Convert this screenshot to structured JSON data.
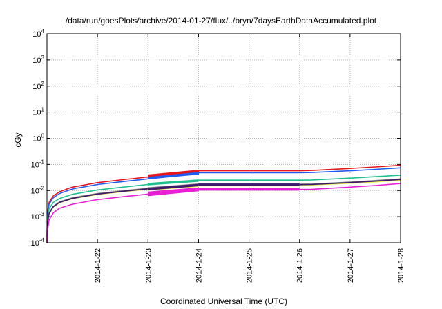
{
  "chart_data": {
    "type": "line",
    "title": "/data/run/goesPlots/archive/2014-01-27/flux/../bryn/7daysEarthDataAccumulated.plot",
    "xlabel": "Coordinated Universal Time (UTC)",
    "ylabel": "cGy",
    "yscale": "log",
    "ylim": [
      0.0001,
      10000
    ],
    "xlim": [
      "2014-01-21",
      "2014-01-28"
    ],
    "grid": true,
    "x_ticks": [
      "2014-1-22",
      "2014-1-23",
      "2014-1-24",
      "2014-1-25",
      "2014-1-26",
      "2014-1-27",
      "2014-1-28"
    ],
    "y_ticks": [
      {
        "value": 0.0001,
        "base": "10",
        "exp": "-4"
      },
      {
        "value": 0.001,
        "base": "10",
        "exp": "-3"
      },
      {
        "value": 0.01,
        "base": "10",
        "exp": "-2"
      },
      {
        "value": 0.1,
        "base": "10",
        "exp": "-1"
      },
      {
        "value": 1,
        "base": "10",
        "exp": "0"
      },
      {
        "value": 10,
        "base": "10",
        "exp": "1"
      },
      {
        "value": 100,
        "base": "10",
        "exp": "2"
      },
      {
        "value": 1000,
        "base": "10",
        "exp": "3"
      },
      {
        "value": 10000,
        "base": "10",
        "exp": "4"
      }
    ],
    "series": [
      {
        "color": "#e8161b",
        "points": [
          [
            "2014-01-21T00:00",
            0.0002
          ],
          [
            "2014-01-21T00:15",
            0.0015
          ],
          [
            "2014-01-21T01:00",
            0.0035
          ],
          [
            "2014-01-21T03:00",
            0.0062
          ],
          [
            "2014-01-21T06:00",
            0.009
          ],
          [
            "2014-01-21T12:00",
            0.0135
          ],
          [
            "2014-01-22T00:00",
            0.02
          ],
          [
            "2014-01-22T12:00",
            0.026
          ],
          [
            "2014-01-23T00:00",
            0.033
          ],
          [
            "2014-01-23T12:00",
            0.041
          ],
          [
            "2014-01-24T00:00",
            0.05
          ],
          [
            "2014-01-24T00:01",
            0.057
          ],
          [
            "2014-01-26T00:00",
            0.057
          ],
          [
            "2014-01-26T06:00",
            0.059
          ],
          [
            "2014-01-27T00:00",
            0.07
          ],
          [
            "2014-01-27T12:00",
            0.08
          ],
          [
            "2014-01-28T00:00",
            0.093
          ]
        ]
      },
      {
        "color": "#1f5cf0",
        "points": [
          [
            "2014-01-21T00:00",
            0.00016
          ],
          [
            "2014-01-21T00:15",
            0.0012
          ],
          [
            "2014-01-21T01:00",
            0.003
          ],
          [
            "2014-01-21T03:00",
            0.0053
          ],
          [
            "2014-01-21T06:00",
            0.0077
          ],
          [
            "2014-01-21T12:00",
            0.0115
          ],
          [
            "2014-01-22T00:00",
            0.017
          ],
          [
            "2014-01-22T12:00",
            0.022
          ],
          [
            "2014-01-23T00:00",
            0.028
          ],
          [
            "2014-01-23T12:00",
            0.035
          ],
          [
            "2014-01-24T00:00",
            0.043
          ],
          [
            "2014-01-24T00:01",
            0.048
          ],
          [
            "2014-01-26T00:00",
            0.048
          ],
          [
            "2014-01-26T06:00",
            0.049
          ],
          [
            "2014-01-27T00:00",
            0.057
          ],
          [
            "2014-01-27T12:00",
            0.065
          ],
          [
            "2014-01-28T00:00",
            0.074
          ]
        ]
      },
      {
        "color": "#1ec08f",
        "points": [
          [
            "2014-01-21T00:00",
            0.00012
          ],
          [
            "2014-01-21T00:15",
            0.0008
          ],
          [
            "2014-01-21T01:00",
            0.002
          ],
          [
            "2014-01-21T03:00",
            0.0035
          ],
          [
            "2014-01-21T06:00",
            0.005
          ],
          [
            "2014-01-21T12:00",
            0.0072
          ],
          [
            "2014-01-22T00:00",
            0.0105
          ],
          [
            "2014-01-22T12:00",
            0.0135
          ],
          [
            "2014-01-23T00:00",
            0.017
          ],
          [
            "2014-01-23T12:00",
            0.0205
          ],
          [
            "2014-01-24T00:00",
            0.0235
          ],
          [
            "2014-01-24T00:01",
            0.025
          ],
          [
            "2014-01-26T00:00",
            0.025
          ],
          [
            "2014-01-26T06:00",
            0.0255
          ],
          [
            "2014-01-27T00:00",
            0.03
          ],
          [
            "2014-01-27T12:00",
            0.034
          ],
          [
            "2014-01-28T00:00",
            0.039
          ]
        ]
      },
      {
        "color": "#7f7f7f",
        "points": [
          [
            "2014-01-21T00:00",
            0.0001
          ],
          [
            "2014-01-21T00:15",
            0.0006
          ],
          [
            "2014-01-21T01:00",
            0.0014
          ],
          [
            "2014-01-21T03:00",
            0.0025
          ],
          [
            "2014-01-21T06:00",
            0.0037
          ],
          [
            "2014-01-21T12:00",
            0.0053
          ],
          [
            "2014-01-22T00:00",
            0.0077
          ],
          [
            "2014-01-22T12:00",
            0.0098
          ],
          [
            "2014-01-23T00:00",
            0.0122
          ],
          [
            "2014-01-23T12:00",
            0.0145
          ],
          [
            "2014-01-24T00:00",
            0.0165
          ],
          [
            "2014-01-24T00:01",
            0.0175
          ],
          [
            "2014-01-26T00:00",
            0.0175
          ],
          [
            "2014-01-26T06:00",
            0.0178
          ],
          [
            "2014-01-27T00:00",
            0.021
          ],
          [
            "2014-01-27T12:00",
            0.024
          ],
          [
            "2014-01-28T00:00",
            0.028
          ]
        ]
      },
      {
        "color": "#f2ef3a",
        "points": [
          [
            "2014-01-21T00:00",
            0.0001
          ],
          [
            "2014-01-21T00:15",
            0.00055
          ],
          [
            "2014-01-21T01:00",
            0.0013
          ],
          [
            "2014-01-21T03:00",
            0.0023
          ],
          [
            "2014-01-21T06:00",
            0.0034
          ],
          [
            "2014-01-21T12:00",
            0.0049
          ],
          [
            "2014-01-22T00:00",
            0.0071
          ],
          [
            "2014-01-22T12:00",
            0.009
          ],
          [
            "2014-01-23T00:00",
            0.0112
          ],
          [
            "2014-01-23T12:00",
            0.0133
          ],
          [
            "2014-01-24T00:00",
            0.0152
          ],
          [
            "2014-01-24T00:01",
            0.016
          ],
          [
            "2014-01-26T00:00",
            0.016
          ],
          [
            "2014-01-26T06:00",
            0.0163
          ],
          [
            "2014-01-27T00:00",
            0.019
          ],
          [
            "2014-01-27T12:00",
            0.0215
          ],
          [
            "2014-01-28T00:00",
            0.025
          ]
        ]
      },
      {
        "color": "#3d1a70",
        "points": [
          [
            "2014-01-21T00:00",
            0.0001
          ],
          [
            "2014-01-21T00:15",
            0.00055
          ],
          [
            "2014-01-21T01:00",
            0.0013
          ],
          [
            "2014-01-21T03:00",
            0.0024
          ],
          [
            "2014-01-21T06:00",
            0.0035
          ],
          [
            "2014-01-21T12:00",
            0.005
          ],
          [
            "2014-01-22T00:00",
            0.0073
          ],
          [
            "2014-01-22T12:00",
            0.0093
          ],
          [
            "2014-01-23T00:00",
            0.0116
          ],
          [
            "2014-01-23T12:00",
            0.0138
          ],
          [
            "2014-01-24T00:00",
            0.0158
          ],
          [
            "2014-01-24T00:01",
            0.0167
          ],
          [
            "2014-01-26T00:00",
            0.0167
          ],
          [
            "2014-01-26T06:00",
            0.017
          ],
          [
            "2014-01-27T00:00",
            0.02
          ],
          [
            "2014-01-27T12:00",
            0.0228
          ],
          [
            "2014-01-28T00:00",
            0.0265
          ]
        ]
      },
      {
        "color": "#e81fd4",
        "points": [
          [
            "2014-01-21T00:00",
            0.0001
          ],
          [
            "2014-01-21T00:15",
            0.0003
          ],
          [
            "2014-01-21T01:00",
            0.00075
          ],
          [
            "2014-01-21T03:00",
            0.0014
          ],
          [
            "2014-01-21T06:00",
            0.0021
          ],
          [
            "2014-01-21T12:00",
            0.003
          ],
          [
            "2014-01-22T00:00",
            0.0045
          ],
          [
            "2014-01-22T12:00",
            0.0058
          ],
          [
            "2014-01-23T00:00",
            0.0073
          ],
          [
            "2014-01-23T12:00",
            0.0087
          ],
          [
            "2014-01-24T00:00",
            0.0102
          ],
          [
            "2014-01-24T00:01",
            0.011
          ],
          [
            "2014-01-26T00:00",
            0.011
          ],
          [
            "2014-01-26T06:00",
            0.0112
          ],
          [
            "2014-01-27T00:00",
            0.0135
          ],
          [
            "2014-01-27T12:00",
            0.0155
          ],
          [
            "2014-01-28T00:00",
            0.0185
          ]
        ]
      }
    ],
    "thick_segments": [
      {
        "color": "#e8161b",
        "from": [
          "2014-01-23T00:00",
          0.037
        ],
        "to": [
          "2014-01-24T00:00",
          0.056
        ]
      },
      {
        "color": "#1f5cf0",
        "from": [
          "2014-01-23T00:00",
          0.03
        ],
        "to": [
          "2014-01-24T00:00",
          0.046
        ]
      },
      {
        "color": "#1ec08f",
        "from": [
          "2014-01-23T00:00",
          0.0175
        ],
        "to": [
          "2014-01-24T00:00",
          0.024
        ]
      },
      {
        "color": "#7f7f7f",
        "from": [
          "2014-01-23T00:00",
          0.012
        ],
        "to": [
          "2014-01-24T00:00",
          0.0168
        ]
      },
      {
        "color": "#f2ef3a",
        "from": [
          "2014-01-23T00:00",
          0.011
        ],
        "to": [
          "2014-01-24T00:00",
          0.0153
        ]
      },
      {
        "color": "#3d1a70",
        "from": [
          "2014-01-23T00:00",
          0.0114
        ],
        "to": [
          "2014-01-24T00:00",
          0.0162
        ]
      },
      {
        "color": "#e81fd4",
        "from": [
          "2014-01-23T00:00",
          0.0068
        ],
        "to": [
          "2014-01-24T00:00",
          0.0105
        ]
      },
      {
        "color": "#e81fd4",
        "from": [
          "2014-01-23T00:00",
          0.0082
        ],
        "to": [
          "2014-01-24T00:00",
          0.0118
        ]
      },
      {
        "color": "#7f7f7f",
        "from": [
          "2014-01-24T00:00",
          0.0175
        ],
        "to": [
          "2014-01-26T00:00",
          0.0175
        ]
      },
      {
        "color": "#f2ef3a",
        "from": [
          "2014-01-24T00:00",
          0.016
        ],
        "to": [
          "2014-01-26T00:00",
          0.016
        ]
      },
      {
        "color": "#3d1a70",
        "from": [
          "2014-01-24T00:00",
          0.0167
        ],
        "to": [
          "2014-01-26T00:00",
          0.0167
        ]
      },
      {
        "color": "#e81fd4",
        "from": [
          "2014-01-24T00:00",
          0.011
        ],
        "to": [
          "2014-01-26T00:00",
          0.011
        ]
      }
    ]
  }
}
